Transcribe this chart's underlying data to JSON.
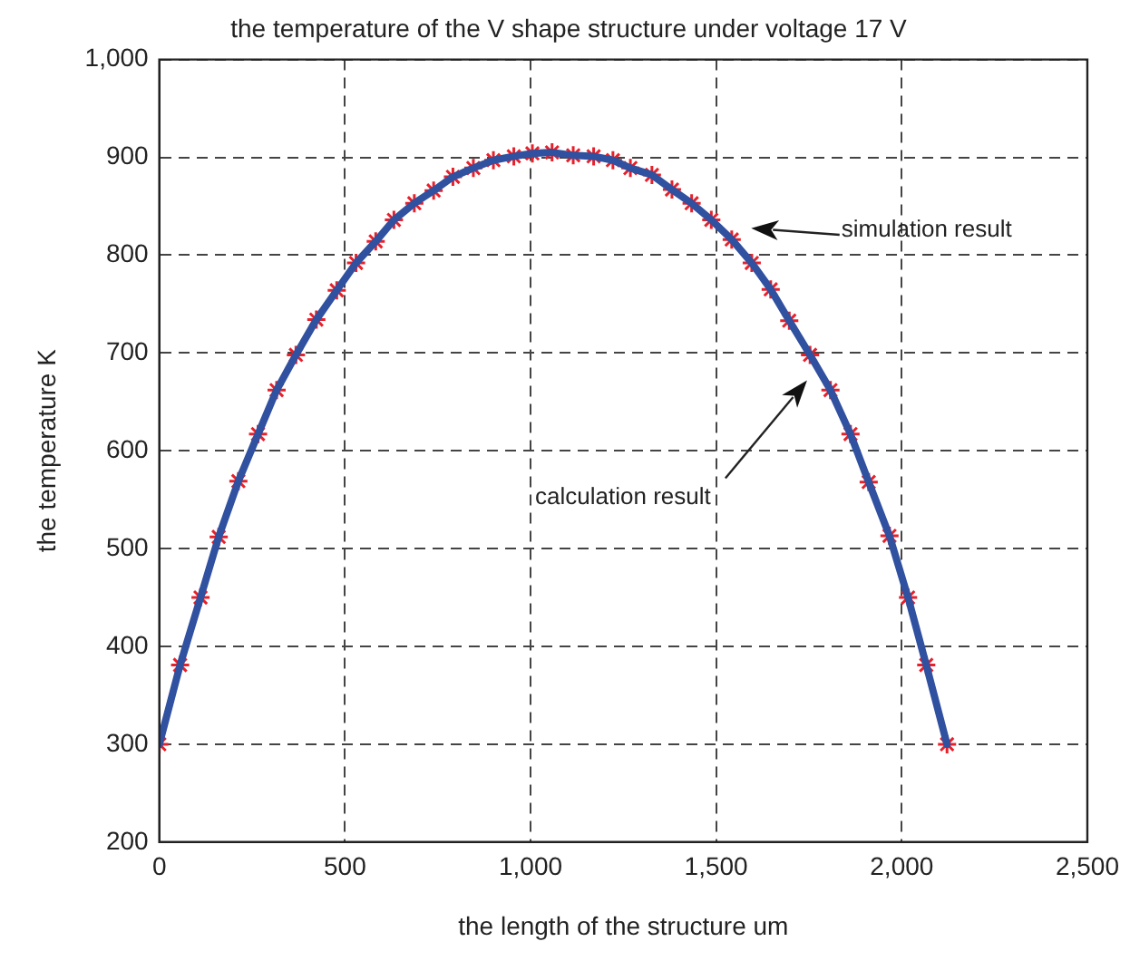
{
  "chart_data": {
    "type": "line",
    "title": "the temperature of the V shape structure under voltage 17 V",
    "xlabel": "the length of the structure um",
    "ylabel": "the temperature K",
    "xlim": [
      0,
      2500
    ],
    "ylim": [
      200,
      1000
    ],
    "xticks": [
      0,
      500,
      {
        "value": 1000,
        "label": "1,000"
      },
      {
        "value": 1500,
        "label": "1,500"
      },
      {
        "value": 2000,
        "label": "2,000"
      },
      {
        "value": 2500,
        "label": "2,500"
      }
    ],
    "yticks": [
      200,
      300,
      400,
      500,
      600,
      700,
      800,
      900,
      {
        "value": 1000,
        "label": "1,000"
      }
    ],
    "grid": true,
    "series": [
      {
        "type": "line",
        "color": "#3050a0",
        "marker": "none",
        "x": [
          0,
          56,
          111,
          160,
          213,
          266,
          316,
          368,
          423,
          478,
          530,
          583,
          632,
          687,
          739,
          791,
          846,
          900,
          955,
          1005,
          1058,
          1115,
          1170,
          1222,
          1269,
          1327,
          1381,
          1434,
          1487,
          1542,
          1596,
          1647,
          1697,
          1753,
          1808,
          1862,
          1911,
          1967,
          2017,
          2066,
          2122
        ],
        "values": [
          300,
          381,
          450,
          512,
          569,
          617,
          662,
          698,
          734,
          764,
          792,
          814,
          836,
          853,
          866,
          880,
          889,
          897,
          901,
          904,
          905,
          902,
          901,
          897,
          889,
          882,
          867,
          853,
          836,
          816,
          792,
          765,
          733,
          698,
          662,
          617,
          568,
          513,
          450,
          381,
          300
        ]
      },
      {
        "type": "scatter",
        "color": "#e8202a",
        "marker": "cross",
        "x": [
          0,
          56,
          111,
          160,
          213,
          266,
          316,
          368,
          423,
          478,
          530,
          583,
          632,
          687,
          739,
          791,
          846,
          900,
          955,
          1005,
          1058,
          1115,
          1170,
          1222,
          1269,
          1327,
          1381,
          1434,
          1487,
          1542,
          1596,
          1647,
          1697,
          1753,
          1808,
          1862,
          1911,
          1967,
          2017,
          2066,
          2122
        ],
        "values": [
          300,
          381,
          450,
          512,
          569,
          617,
          662,
          698,
          734,
          764,
          792,
          814,
          836,
          853,
          866,
          880,
          889,
          897,
          901,
          904,
          905,
          902,
          901,
          897,
          889,
          882,
          867,
          853,
          836,
          816,
          792,
          765,
          733,
          698,
          662,
          617,
          568,
          513,
          450,
          381,
          300
        ]
      }
    ],
    "annotations": [
      "simulation result",
      "calculation result"
    ]
  }
}
